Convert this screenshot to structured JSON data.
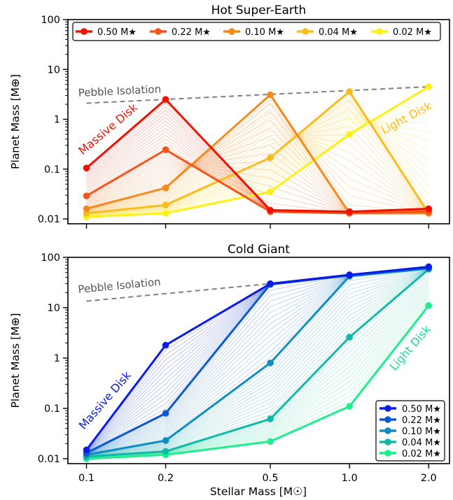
{
  "figure": {
    "xlabel": "Stellar Mass [M☉]",
    "ylabel": "Planet Mass [M⊕]"
  },
  "chart_data": [
    {
      "type": "line",
      "title": "Hot Super-Earth",
      "x": [
        0.1,
        0.2,
        0.5,
        1.0,
        2.0
      ],
      "xscale": "log",
      "yscale": "log",
      "xlim": [
        0.085,
        2.4
      ],
      "ylim": [
        0.008,
        100
      ],
      "xticks": [
        "0.1",
        "0.2",
        "0.5",
        "1.0",
        "2.0"
      ],
      "yticks": [
        "0.01",
        "0.1",
        "1",
        "10",
        "100"
      ],
      "legend": "top, horizontal",
      "series": [
        {
          "name": "0.50 M★",
          "color": "#ee1100",
          "values": [
            0.105,
            2.5,
            0.015,
            0.014,
            0.016
          ]
        },
        {
          "name": "0.22 M★",
          "color": "#f4541a",
          "values": [
            0.029,
            0.245,
            0.014,
            0.013,
            0.014
          ]
        },
        {
          "name": "0.10 M★",
          "color": "#f58a1c",
          "values": [
            0.016,
            0.042,
            3.1,
            0.013,
            0.013
          ]
        },
        {
          "name": "0.04 M★",
          "color": "#fbbb18",
          "values": [
            0.013,
            0.019,
            0.17,
            3.6,
            0.013
          ]
        },
        {
          "name": "0.02 M★",
          "color": "#fef014",
          "values": [
            0.011,
            0.013,
            0.035,
            0.5,
            4.5
          ]
        }
      ],
      "reference": {
        "label": "Pebble Isolation",
        "x": [
          0.1,
          2.0
        ],
        "y": [
          2.1,
          4.5
        ]
      },
      "annotations": [
        {
          "text": "Massive Disk",
          "color": "#ee1100"
        },
        {
          "text": "Light Disk",
          "color": "#fbbb18"
        }
      ]
    },
    {
      "type": "line",
      "title": "Cold Giant",
      "x": [
        0.1,
        0.2,
        0.5,
        1.0,
        2.0
      ],
      "xscale": "log",
      "yscale": "log",
      "xlim": [
        0.085,
        2.4
      ],
      "ylim": [
        0.008,
        100
      ],
      "xticks": [
        "0.1",
        "0.2",
        "0.5",
        "1.0",
        "2.0"
      ],
      "yticks": [
        "0.01",
        "0.1",
        "1",
        "10",
        "100"
      ],
      "legend": "bottom-right",
      "series": [
        {
          "name": "0.50 M★",
          "color": "#0a1be8",
          "values": [
            0.015,
            1.8,
            30,
            45,
            65
          ]
        },
        {
          "name": "0.22 M★",
          "color": "#0d58d0",
          "values": [
            0.013,
            0.08,
            29,
            44,
            62
          ]
        },
        {
          "name": "0.10 M★",
          "color": "#0f8dbe",
          "values": [
            0.012,
            0.023,
            0.8,
            42,
            60
          ]
        },
        {
          "name": "0.04 M★",
          "color": "#10b8a6",
          "values": [
            0.011,
            0.014,
            0.062,
            2.6,
            58
          ]
        },
        {
          "name": "0.02 M★",
          "color": "#1cef8c",
          "values": [
            0.01,
            0.012,
            0.022,
            0.11,
            11
          ]
        }
      ],
      "reference": {
        "label": "Pebble Isolation",
        "x": [
          0.1,
          0.5
        ],
        "y": [
          13.5,
          30
        ]
      },
      "annotations": [
        {
          "text": "Massive Disk",
          "color": "#0a1be8"
        },
        {
          "text": "Light Disk",
          "color": "#1cd69a"
        }
      ]
    }
  ]
}
